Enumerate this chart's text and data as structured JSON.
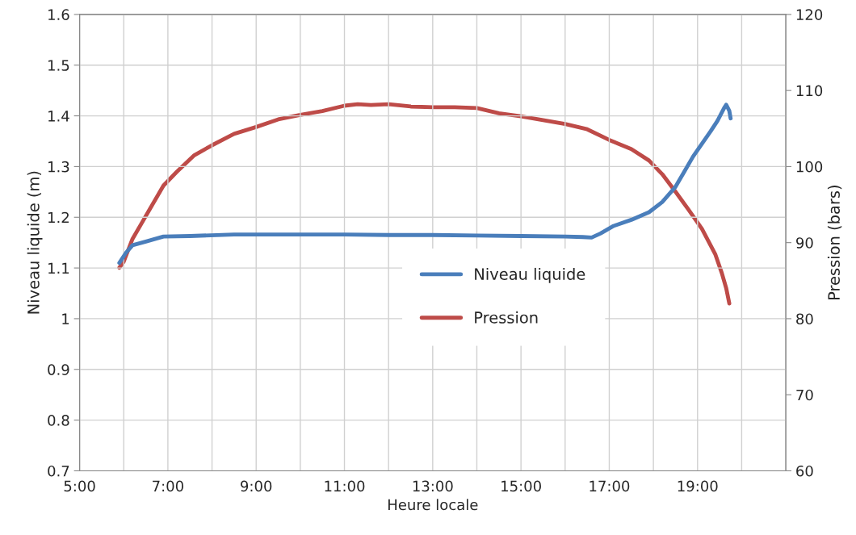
{
  "chart_data": {
    "type": "line",
    "xlabel": "Heure locale",
    "ylabel": "Niveau liquide (m)",
    "y2label": "Pression (bars)",
    "xlim": [
      5,
      21
    ],
    "xticks": [
      {
        "value": 5,
        "label": "5:00"
      },
      {
        "value": 6,
        "label": null
      },
      {
        "value": 7,
        "label": "7:00"
      },
      {
        "value": 8,
        "label": null
      },
      {
        "value": 9,
        "label": "9:00"
      },
      {
        "value": 10,
        "label": null
      },
      {
        "value": 11,
        "label": "11:00"
      },
      {
        "value": 12,
        "label": null
      },
      {
        "value": 13,
        "label": "13:00"
      },
      {
        "value": 14,
        "label": null
      },
      {
        "value": 15,
        "label": "15:00"
      },
      {
        "value": 16,
        "label": null
      },
      {
        "value": 17,
        "label": "17:00"
      },
      {
        "value": 18,
        "label": null
      },
      {
        "value": 19,
        "label": "19:00"
      },
      {
        "value": 20,
        "label": null
      },
      {
        "value": 21,
        "label": null
      }
    ],
    "ylim": [
      0.7,
      1.6
    ],
    "yticks": [
      0.7,
      0.8,
      0.9,
      1,
      1.1,
      1.2,
      1.3,
      1.4,
      1.5,
      1.6
    ],
    "y2lim": [
      60,
      120
    ],
    "y2ticks": [
      60,
      70,
      80,
      90,
      100,
      110,
      120
    ],
    "grid": true,
    "legend": "center",
    "series": [
      {
        "name": "Niveau liquide",
        "color": "#4a7ebb",
        "x": [
          5.9,
          6.05,
          6.2,
          6.5,
          6.9,
          7.5,
          8.5,
          10,
          11,
          12,
          13,
          14,
          15,
          16,
          16.4,
          16.6,
          16.8,
          17.1,
          17.5,
          17.9,
          18.2,
          18.5,
          18.7,
          18.9,
          19.1,
          19.3,
          19.45,
          19.6,
          19.65,
          19.72,
          19.75
        ],
        "values": [
          1.11,
          1.13,
          1.145,
          1.152,
          1.162,
          1.163,
          1.166,
          1.166,
          1.166,
          1.165,
          1.165,
          1.164,
          1.163,
          1.162,
          1.161,
          1.16,
          1.168,
          1.183,
          1.195,
          1.21,
          1.23,
          1.26,
          1.29,
          1.32,
          1.345,
          1.37,
          1.39,
          1.415,
          1.422,
          1.41,
          1.395
        ]
      },
      {
        "name": "Pression",
        "color": "#be4b48",
        "axis": "y2",
        "x": [
          5.9,
          6.0,
          6.2,
          6.4,
          6.6,
          6.9,
          7.2,
          7.6,
          8.0,
          8.5,
          9.0,
          9.5,
          10.0,
          10.5,
          11.0,
          11.3,
          11.6,
          12.0,
          12.5,
          13.0,
          13.5,
          14.0,
          14.5,
          15.0,
          15.5,
          16.0,
          16.5,
          17.0,
          17.5,
          17.9,
          18.2,
          18.5,
          18.8,
          19.1,
          19.4,
          19.55,
          19.65,
          19.72
        ],
        "values": [
          86.7,
          87.5,
          90.5,
          92.5,
          94.5,
          97.5,
          99.3,
          101.5,
          102.8,
          104.3,
          105.2,
          106.2,
          106.8,
          107.3,
          108.0,
          108.2,
          108.1,
          108.2,
          107.9,
          107.8,
          107.8,
          107.7,
          107.0,
          106.6,
          106.1,
          105.6,
          104.9,
          103.5,
          102.3,
          100.8,
          99.0,
          96.7,
          94.3,
          91.8,
          88.5,
          86.0,
          84.0,
          82.0
        ]
      }
    ]
  }
}
